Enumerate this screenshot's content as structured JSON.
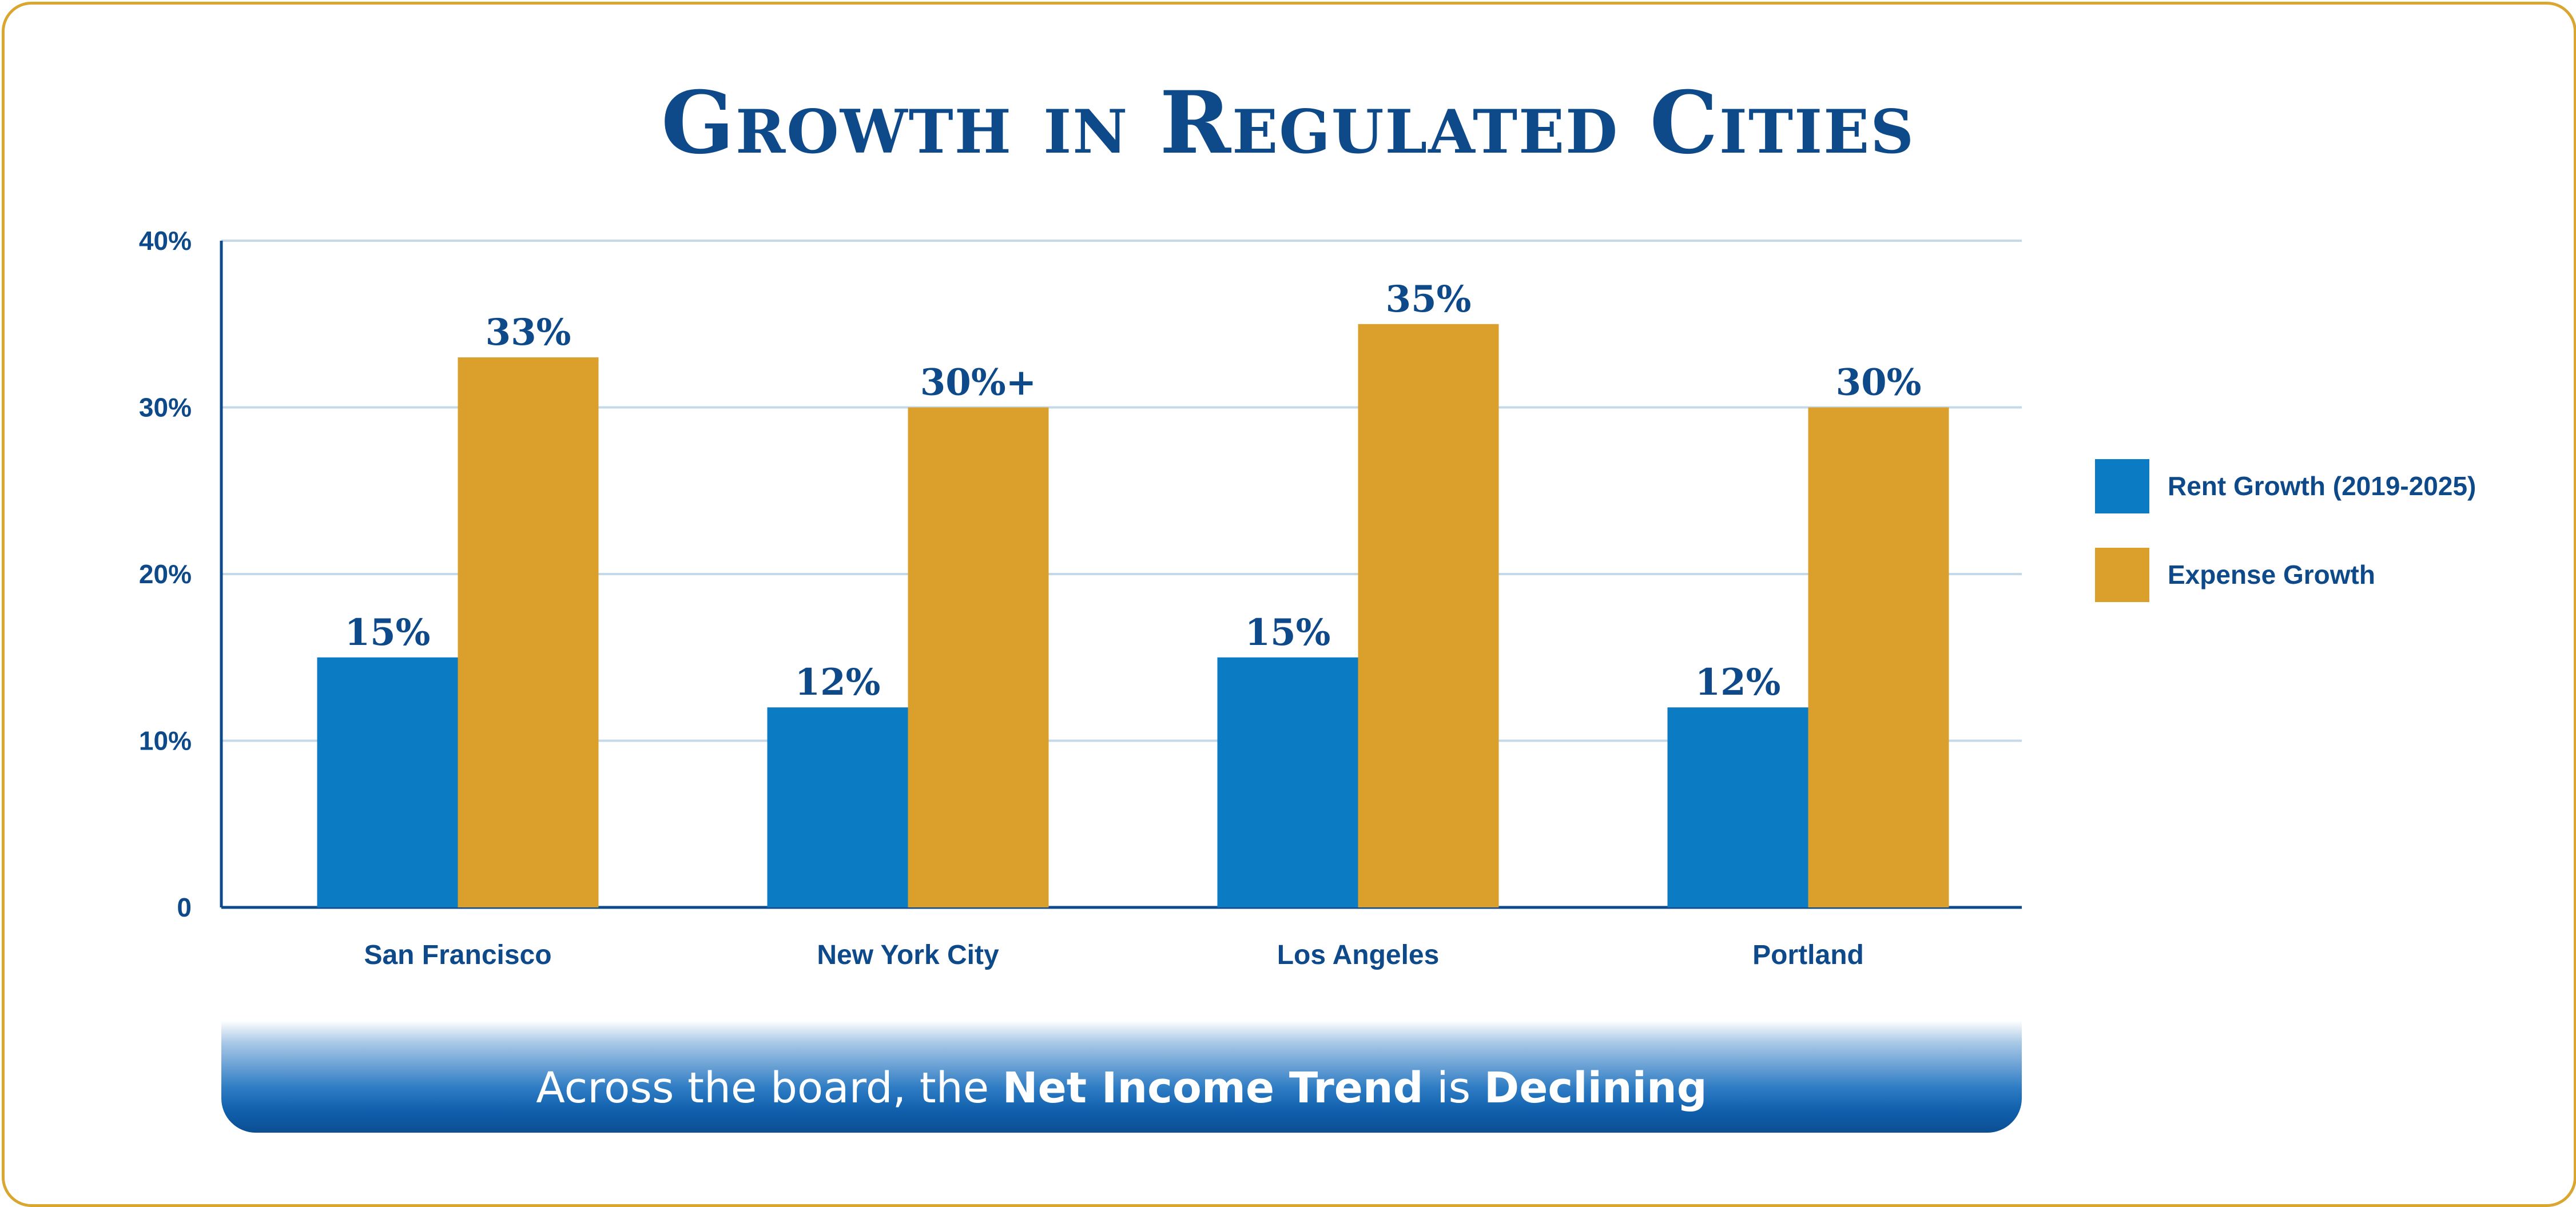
{
  "colors": {
    "frame": "#d9a630",
    "title": "#0e4a8a",
    "axis": "#0e4a8a",
    "grid": "#c5d8e8",
    "rent": "#0b7cc4",
    "expense": "#dba02c",
    "label": "#0e4a8a"
  },
  "title": "Growth in Regulated Cities",
  "banner": {
    "part1": "Across the board, the ",
    "bold1": "Net Income Trend",
    "part2": " is ",
    "bold2": "Declining"
  },
  "chart_data": {
    "type": "bar",
    "categories": [
      "San Francisco",
      "New York City",
      "Los Angeles",
      "Portland"
    ],
    "series": [
      {
        "name": "Rent Growth (2019-2025)",
        "values": [
          15,
          12,
          15,
          12
        ],
        "labels": [
          "15%",
          "12%",
          "15%",
          "12%"
        ],
        "color": "#0b7cc4"
      },
      {
        "name": "Expense Growth",
        "values": [
          33,
          30,
          35,
          30
        ],
        "labels": [
          "33%",
          "30%+",
          "35%",
          "30%"
        ],
        "color": "#dba02c"
      }
    ],
    "yticks": [
      "0",
      "10%",
      "20%",
      "30%",
      "40%"
    ],
    "ylim": [
      0,
      40
    ],
    "grid": true,
    "legend": "right"
  }
}
